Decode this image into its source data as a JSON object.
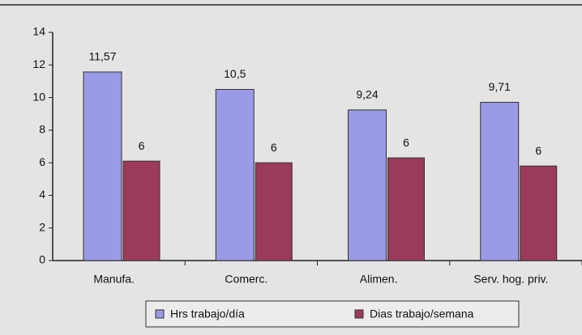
{
  "chart_data": {
    "type": "bar",
    "categories": [
      "Manufa.",
      "Comerc.",
      "Alimen.",
      "Serv. hog. priv."
    ],
    "series": [
      {
        "name": "Hrs trabajo/día",
        "color": "#9a9ae6",
        "values": [
          11.57,
          10.5,
          9.24,
          9.71
        ],
        "value_labels": [
          "11,57",
          "10,5",
          "9,24",
          "9,71"
        ]
      },
      {
        "name": "Dias trabajo/semana",
        "color": "#9c3a5a",
        "values": [
          6.1,
          6.0,
          6.3,
          5.8
        ],
        "value_labels": [
          "6",
          "6",
          "6",
          "6"
        ]
      }
    ],
    "ylim": [
      0,
      14
    ],
    "yticks": [
      0,
      2,
      4,
      6,
      8,
      10,
      12,
      14
    ],
    "legend": "bottom"
  }
}
